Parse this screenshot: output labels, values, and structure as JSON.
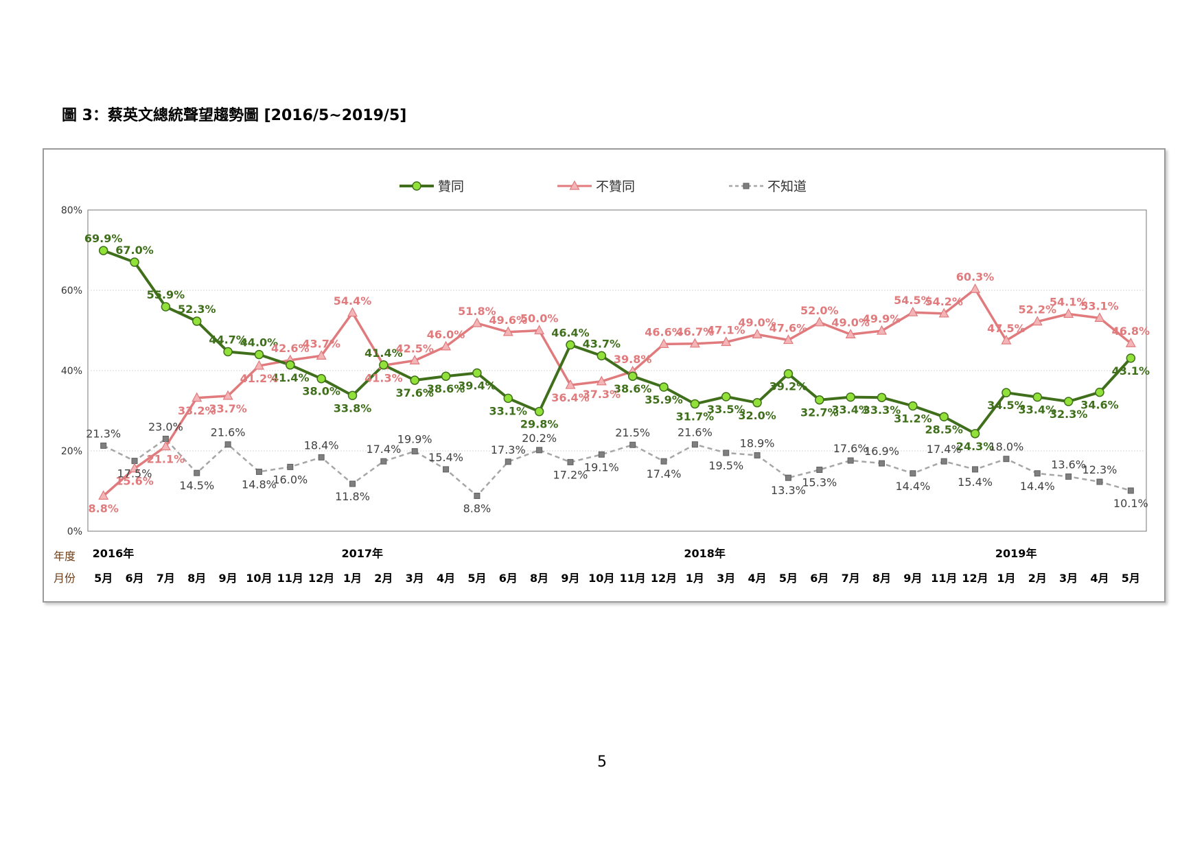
{
  "title": "圖 3：蔡英文總統聲望趨勢圖  [2016/5~2019/5]",
  "page_number": "5",
  "legend": {
    "placement": "top-center"
  },
  "colors": {
    "approve": "#3f6f1b",
    "approve_marker": "#92e03a",
    "disapprove": "#e07a7c",
    "disapprove_marker": "#f3b5b7",
    "dontknow": "#a6a6a6",
    "dontknow_marker": "#7f7f7f",
    "year_label_row": "#6b3b16"
  },
  "chart_data": {
    "type": "line",
    "ylim": [
      0,
      80
    ],
    "yticks": [
      "0%",
      "20%",
      "40%",
      "60%",
      "80%"
    ],
    "grid": true,
    "row_labels": {
      "year": "年度",
      "month": "月份"
    },
    "years": [
      {
        "label": "2016年",
        "start_index": 0
      },
      {
        "label": "2017年",
        "start_index": 8
      },
      {
        "label": "2018年",
        "start_index": 19
      },
      {
        "label": "2019年",
        "start_index": 29
      }
    ],
    "categories": [
      "5月",
      "6月",
      "7月",
      "8月",
      "9月",
      "10月",
      "11月",
      "12月",
      "1月",
      "2月",
      "3月",
      "4月",
      "5月",
      "6月",
      "8月",
      "9月",
      "10月",
      "11月",
      "12月",
      "1月",
      "3月",
      "4月",
      "5月",
      "6月",
      "7月",
      "8月",
      "9月",
      "11月",
      "12月",
      "1月",
      "2月",
      "3月",
      "4月",
      "5月"
    ],
    "series": [
      {
        "name": "贊同",
        "key": "approve",
        "values": [
          69.9,
          67.0,
          55.9,
          52.3,
          44.7,
          44.0,
          41.4,
          38.0,
          33.8,
          41.4,
          37.6,
          38.6,
          39.4,
          33.1,
          29.8,
          46.4,
          43.7,
          38.6,
          35.9,
          31.7,
          33.5,
          32.0,
          39.2,
          32.7,
          33.4,
          33.3,
          31.2,
          28.5,
          24.3,
          34.5,
          33.4,
          32.3,
          34.6,
          43.1
        ],
        "labels": [
          "69.9%",
          "67.0%",
          "55.9%",
          "52.3%",
          "44.7%",
          "44.0%",
          "41.4%",
          "38.0%",
          "33.8%",
          "41.4%",
          "37.6%",
          "38.6%",
          "39.4%",
          "33.1%",
          "29.8%",
          "46.4%",
          "43.7%",
          "38.6%",
          "35.9%",
          "31.7%",
          "33.5%",
          "32.0%",
          "39.2%",
          "32.7%",
          "33.4%",
          "33.3%",
          "31.2%",
          "28.5%",
          "24.3%",
          "34.5%",
          "33.4%",
          "32.3%",
          "34.6%",
          "43.1%"
        ]
      },
      {
        "name": "不贊同",
        "key": "disapprove",
        "values": [
          8.8,
          15.6,
          21.1,
          33.2,
          33.7,
          41.2,
          42.6,
          43.7,
          54.4,
          41.3,
          42.5,
          46.0,
          51.8,
          49.6,
          50.0,
          36.4,
          37.3,
          39.8,
          46.6,
          46.7,
          47.1,
          49.0,
          47.6,
          52.0,
          49.0,
          49.9,
          54.5,
          54.2,
          60.3,
          47.5,
          52.2,
          54.1,
          53.1,
          46.8
        ],
        "labels": [
          "8.8%",
          "15.6%",
          "21.1%",
          "33.2%",
          "33.7%",
          "41.2%",
          "42.6%",
          "43.7%",
          "54.4%",
          "41.3%",
          "42.5%",
          "46.0%",
          "51.8%",
          "49.6%",
          "50.0%",
          "36.4%",
          "37.3%",
          "39.8%",
          "46.6%",
          "46.7%",
          "47.1%",
          "49.0%",
          "47.6%",
          "52.0%",
          "49.0%",
          "49.9%",
          "54.5%",
          "54.2%",
          "60.3%",
          "47.5%",
          "52.2%",
          "54.1%",
          "53.1%",
          "46.8%"
        ]
      },
      {
        "name": "不知道",
        "key": "dontknow",
        "values": [
          21.3,
          17.5,
          23.0,
          14.5,
          21.6,
          14.8,
          16.0,
          18.4,
          11.8,
          17.4,
          19.9,
          15.4,
          8.8,
          17.3,
          20.2,
          17.2,
          19.1,
          21.5,
          17.4,
          21.6,
          19.5,
          18.9,
          13.3,
          15.3,
          17.6,
          16.9,
          14.4,
          17.4,
          15.4,
          18.0,
          14.4,
          13.6,
          12.3,
          10.1
        ],
        "labels": [
          "21.3%",
          "17.5%",
          "23.0%",
          "14.5%",
          "21.6%",
          "14.8%",
          "16.0%",
          "18.4%",
          "11.8%",
          "17.4%",
          "19.9%",
          "15.4%",
          "8.8%",
          "17.3%",
          "20.2%",
          "17.2%",
          "19.1%",
          "21.5%",
          "17.4%",
          "21.6%",
          "19.5%",
          "18.9%",
          "13.3%",
          "15.3%",
          "17.6%",
          "16.9%",
          "14.4%",
          "17.4%",
          "15.4%",
          "18.0%",
          "14.4%",
          "13.6%",
          "12.3%",
          "10.1%"
        ]
      }
    ]
  }
}
